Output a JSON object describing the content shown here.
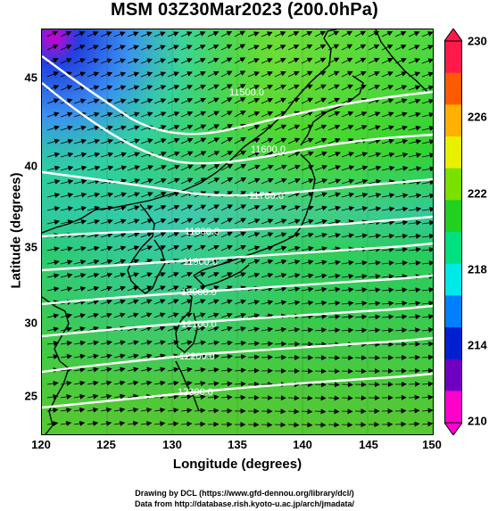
{
  "title": "MSM 03Z30Mar2023 (200.0hPa)",
  "axes": {
    "xlabel": "Longitude (degrees)",
    "ylabel": "Latitude  (degrees)",
    "xticks": [
      "120",
      "125",
      "130",
      "135",
      "140",
      "145",
      "150"
    ],
    "yticks": [
      "45",
      "40",
      "35",
      "30",
      "25"
    ]
  },
  "colorbar": {
    "ticks": [
      "230",
      "226",
      "222",
      "218",
      "214",
      "210"
    ],
    "colors": [
      "#ff1a4a",
      "#ff5a00",
      "#ffb000",
      "#e6f000",
      "#7ae000",
      "#22d020",
      "#00e080",
      "#00e8e8",
      "#0080ff",
      "#0020d0",
      "#7000c0",
      "#ff00cc"
    ]
  },
  "contours": [
    {
      "label": "11500.0"
    },
    {
      "label": "11600.0"
    },
    {
      "label": "11700.0"
    },
    {
      "label": "11800.0"
    },
    {
      "label": "11900.0"
    },
    {
      "label": "12000.0"
    },
    {
      "label": "12100.0"
    },
    {
      "label": "12200.0"
    },
    {
      "label": "12300.0"
    }
  ],
  "credits": {
    "line1": "Drawing by DCL (https://www.gfd-dennou.org/library/dcl/)",
    "line2": "Data from http://database.rish.kyoto-u.ac.jp/arch/jmadata/"
  }
}
